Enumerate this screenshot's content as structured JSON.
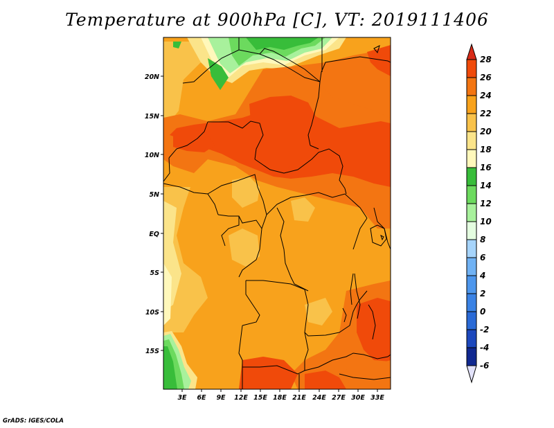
{
  "title": "Temperature at 900hPa [C], VT: 2019111406",
  "credit": "GrADS: IGES/COLA",
  "lat_labels": [
    "20N",
    "15N",
    "10N",
    "5N",
    "EQ",
    "5S",
    "10S",
    "15S"
  ],
  "lon_labels": [
    "3E",
    "6E",
    "9E",
    "12E",
    "15E",
    "18E",
    "21E",
    "24E",
    "27E",
    "30E",
    "33E"
  ],
  "colorbar": {
    "levels": [
      "28",
      "26",
      "24",
      "22",
      "20",
      "18",
      "16",
      "14",
      "12",
      "10",
      "8",
      "6",
      "4",
      "2",
      "0",
      "-2",
      "-4",
      "-6"
    ],
    "colors": {
      "above_28": "#d82b18",
      "26_28": "#f04a0a",
      "24_26": "#f37512",
      "22_24": "#f8a21c",
      "20_22": "#f9c24a",
      "18_20": "#fbe48a",
      "16_18": "#fff8bb",
      "14_16": "#38bd3a",
      "12_14": "#6cda5e",
      "10_12": "#a8f19c",
      "8_10": "#e4fde0",
      "6_8": "#a6d4fb",
      "4_6": "#70b2f4",
      "2_4": "#4d96ec",
      "0_2": "#3a82e4",
      "m2_0": "#2a6ad6",
      "m4_m2": "#1c48bd",
      "m6_m4": "#102890",
      "below_m6": "#0a1060"
    }
  }
}
